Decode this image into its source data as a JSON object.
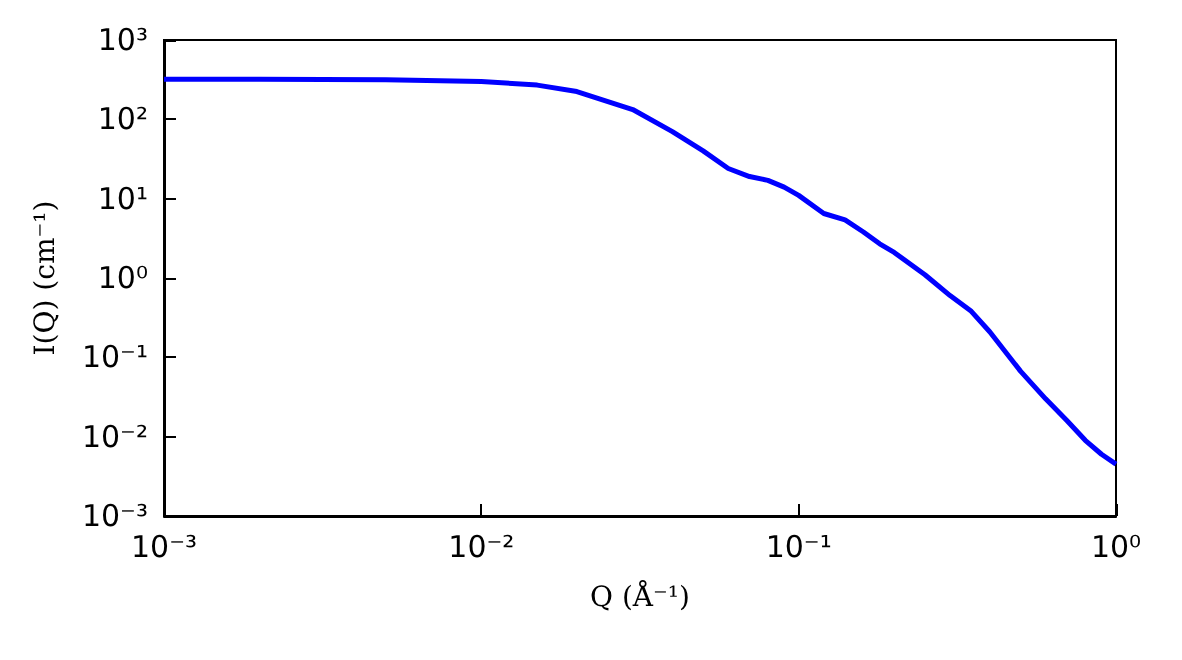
{
  "chart_data": {
    "type": "line",
    "xlabel": "Q (Å⁻¹)",
    "ylabel": "I(Q) (cm⁻¹)",
    "log": "xy",
    "grid": false,
    "legend": false,
    "marker": "none",
    "line_style": "solid",
    "xlim": [
      0.001,
      1
    ],
    "ylim": [
      0.001,
      1000
    ],
    "xticks": [
      {
        "value": 0.001,
        "label": "10⁻³"
      },
      {
        "value": 0.01,
        "label": "10⁻²"
      },
      {
        "value": 0.1,
        "label": "10⁻¹"
      },
      {
        "value": 1,
        "label": "10⁰"
      }
    ],
    "yticks": [
      {
        "value": 0.001,
        "label": "10⁻³"
      },
      {
        "value": 0.01,
        "label": "10⁻²"
      },
      {
        "value": 0.1,
        "label": "10⁻¹"
      },
      {
        "value": 1,
        "label": "10⁰"
      },
      {
        "value": 10,
        "label": "10¹"
      },
      {
        "value": 100,
        "label": "10²"
      },
      {
        "value": 1000,
        "label": "10³"
      }
    ],
    "x": [
      0.001,
      0.002,
      0.005,
      0.01,
      0.015,
      0.02,
      0.03,
      0.04,
      0.05,
      0.06,
      0.07,
      0.08,
      0.09,
      0.1,
      0.12,
      0.14,
      0.16,
      0.18,
      0.2,
      0.25,
      0.3,
      0.35,
      0.4,
      0.5,
      0.6,
      0.7,
      0.8,
      0.9,
      1
    ],
    "series": [
      {
        "color": "#0000ff",
        "values": [
          320,
          320,
          315,
          300,
          270,
          224,
          133,
          70,
          40,
          24,
          19,
          17,
          14,
          11,
          6.5,
          5.4,
          3.8,
          2.7,
          2.1,
          1.1,
          0.6,
          0.38,
          0.21,
          0.067,
          0.03,
          0.016,
          0.009,
          0.006,
          0.0045
        ]
      }
    ]
  }
}
